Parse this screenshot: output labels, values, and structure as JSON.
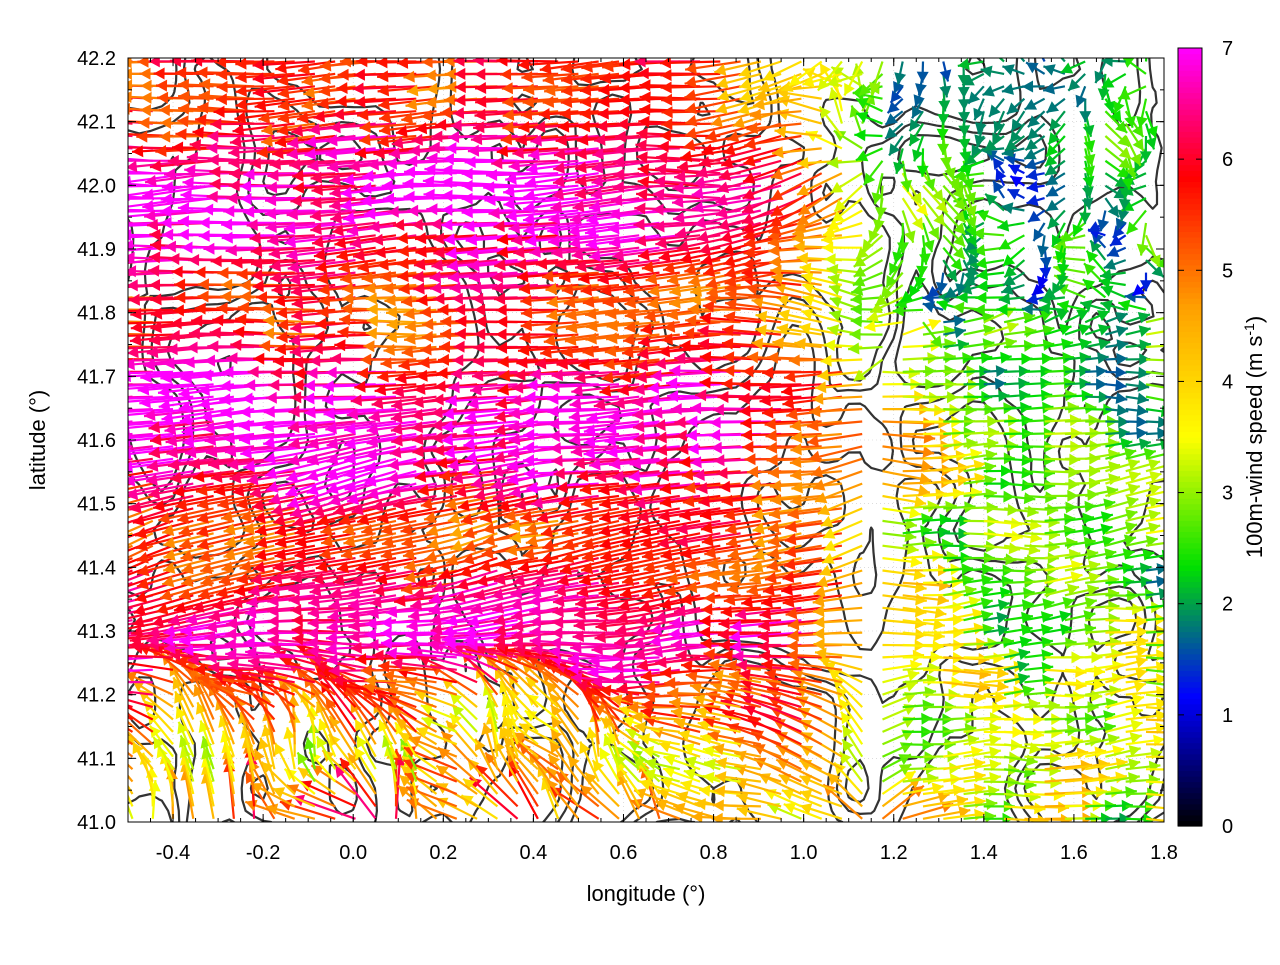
{
  "chart_data": {
    "type": "quiver",
    "xlabel": "longitude (°)",
    "ylabel": "latitude (°)",
    "xlim": [
      -0.5,
      1.8
    ],
    "ylim": [
      41.0,
      42.2
    ],
    "xticks": [
      -0.4,
      -0.2,
      0.0,
      0.2,
      0.4,
      0.6,
      0.8,
      1.0,
      1.2,
      1.4,
      1.6,
      1.8
    ],
    "xtick_labels": [
      "-0.4",
      "-0.2",
      "0.0",
      "0.2",
      "0.4",
      "0.6",
      "0.8",
      "1.0",
      "1.2",
      "1.4",
      "1.6",
      "1.8"
    ],
    "yticks": [
      41.0,
      41.1,
      41.2,
      41.3,
      41.4,
      41.5,
      41.6,
      41.7,
      41.8,
      41.9,
      42.0,
      42.1,
      42.2
    ],
    "ytick_labels": [
      "41.0",
      "41.1",
      "41.2",
      "41.3",
      "41.4",
      "41.5",
      "41.6",
      "41.7",
      "41.8",
      "41.9",
      "42.0",
      "42.1",
      "42.2"
    ],
    "grid": true,
    "colorbar": {
      "label_main": "100m-wind speed (m s",
      "label_sup": "-1",
      "label_close": ")",
      "range": [
        0,
        7
      ],
      "ticks": [
        0,
        1,
        2,
        3,
        4,
        5,
        6,
        7
      ],
      "tick_labels": [
        "0",
        "1",
        "2",
        "3",
        "4",
        "5",
        "6",
        "7"
      ],
      "palette": [
        "#000000",
        "#0000ff",
        "#00e000",
        "#ffff00",
        "#ffa000",
        "#ff0000",
        "#ff00ff"
      ]
    },
    "contour_color": "#333333",
    "wind_regions": [
      {
        "region": "north-west band",
        "lon": [
          -0.5,
          1.2
        ],
        "lat": [
          41.75,
          42.2
        ],
        "direction": "westward",
        "speed_range": [
          4,
          7
        ]
      },
      {
        "region": "central west",
        "lon": [
          -0.5,
          0.9
        ],
        "lat": [
          41.25,
          41.75
        ],
        "direction": "west-northwest",
        "speed_range": [
          5,
          7
        ]
      },
      {
        "region": "south-west corner",
        "lon": [
          -0.5,
          0.6
        ],
        "lat": [
          41.0,
          41.25
        ],
        "direction": "northward / mixed",
        "speed_range": [
          1,
          6
        ]
      },
      {
        "region": "east",
        "lon": [
          1.2,
          1.8
        ],
        "lat": [
          41.0,
          41.5
        ],
        "direction": "eastward",
        "speed_range": [
          1.5,
          4.5
        ]
      },
      {
        "region": "north-east",
        "lon": [
          1.0,
          1.8
        ],
        "lat": [
          41.8,
          42.2
        ],
        "direction": "variable",
        "speed_range": [
          0.5,
          3
        ]
      }
    ]
  }
}
